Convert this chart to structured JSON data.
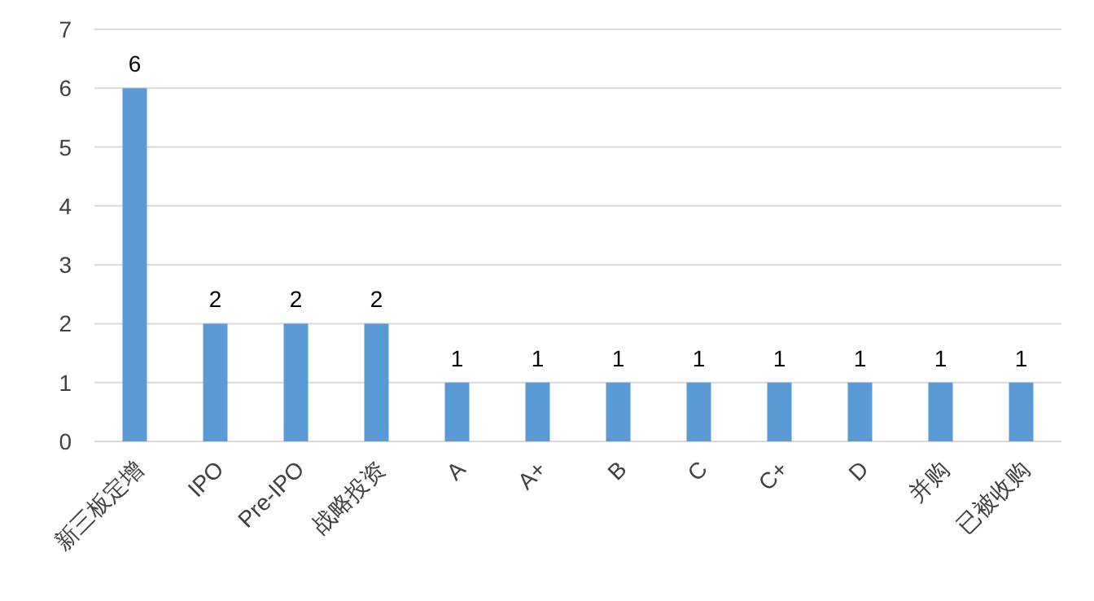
{
  "chart_data": {
    "type": "bar",
    "categories": [
      "新三板定增",
      "IPO",
      "Pre-IPO",
      "战略投资",
      "A",
      "A+",
      "B",
      "C",
      "C+",
      "D",
      "并购",
      "已被收购"
    ],
    "values": [
      6,
      2,
      2,
      2,
      1,
      1,
      1,
      1,
      1,
      1,
      1,
      1
    ],
    "color": "#5b9bd5",
    "ylim": [
      0,
      7
    ],
    "yticks": [
      0,
      1,
      2,
      3,
      4,
      5,
      6,
      7
    ],
    "grid": "y",
    "data_labels": true
  }
}
